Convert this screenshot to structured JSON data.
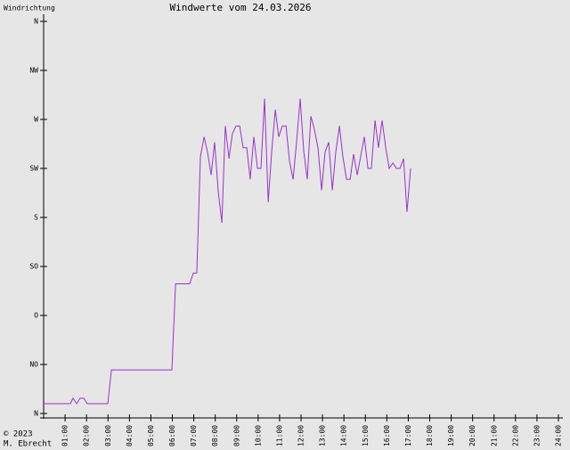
{
  "chart_data": {
    "type": "line",
    "y_label": "Windrichtung",
    "title": "Windwerte vom 24.03.2026",
    "footer": [
      "© 2023",
      "M. Ebrecht"
    ],
    "xlim": [
      0,
      24
    ],
    "xticks": [
      {
        "value": 1,
        "label": "01:00"
      },
      {
        "value": 2,
        "label": "02:00"
      },
      {
        "value": 3,
        "label": "03:00"
      },
      {
        "value": 4,
        "label": "04:00"
      },
      {
        "value": 5,
        "label": "05:00"
      },
      {
        "value": 6,
        "label": "06:00"
      },
      {
        "value": 7,
        "label": "07:00"
      },
      {
        "value": 8,
        "label": "08:00"
      },
      {
        "value": 9,
        "label": "09:00"
      },
      {
        "value": 10,
        "label": "10:00"
      },
      {
        "value": 11,
        "label": "11:00"
      },
      {
        "value": 12,
        "label": "12:00"
      },
      {
        "value": 13,
        "label": "13:00"
      },
      {
        "value": 14,
        "label": "14:00"
      },
      {
        "value": 15,
        "label": "15:00"
      },
      {
        "value": 16,
        "label": "16:00"
      },
      {
        "value": 17,
        "label": "17:00"
      },
      {
        "value": 18,
        "label": "18:00"
      },
      {
        "value": 19,
        "label": "19:00"
      },
      {
        "value": 20,
        "label": "20:00"
      },
      {
        "value": 21,
        "label": "21:00"
      },
      {
        "value": 22,
        "label": "22:00"
      },
      {
        "value": 23,
        "label": "23:00"
      },
      {
        "value": 24,
        "label": "24:00"
      }
    ],
    "ylim": [
      0,
      360
    ],
    "yticks": [
      {
        "value": 0,
        "label": "N"
      },
      {
        "value": 45,
        "label": "NO"
      },
      {
        "value": 90,
        "label": "O"
      },
      {
        "value": 135,
        "label": "SO"
      },
      {
        "value": 180,
        "label": "S"
      },
      {
        "value": 225,
        "label": "SW"
      },
      {
        "value": 270,
        "label": "W"
      },
      {
        "value": 315,
        "label": "NW"
      },
      {
        "value": 360,
        "label": "N"
      }
    ],
    "color": "#9933cc",
    "x": [
      0,
      1.25,
      1.37,
      1.54,
      1.7,
      1.87,
      2.03,
      2.99,
      3.16,
      5.98,
      6.15,
      6.81,
      6.98,
      7.14,
      7.31,
      7.48,
      7.64,
      7.81,
      7.97,
      8.14,
      8.31,
      8.47,
      8.64,
      8.8,
      8.97,
      9.14,
      9.3,
      9.47,
      9.63,
      9.8,
      9.97,
      10.13,
      10.3,
      10.47,
      10.63,
      10.8,
      10.96,
      11.13,
      11.3,
      11.46,
      11.63,
      11.79,
      11.96,
      12.13,
      12.29,
      12.46,
      12.62,
      12.79,
      12.96,
      13.12,
      13.29,
      13.46,
      13.62,
      13.79,
      13.95,
      14.12,
      14.29,
      14.45,
      14.62,
      14.78,
      14.95,
      15.12,
      15.28,
      15.45,
      15.61,
      15.78,
      15.95,
      16.11,
      16.28,
      16.45,
      16.61,
      16.78,
      16.94,
      17.11
    ],
    "values": [
      9,
      9,
      14,
      9,
      14,
      14,
      9,
      9,
      40,
      40,
      119,
      119,
      129,
      129,
      236,
      254,
      240,
      219,
      249,
      204,
      175,
      264,
      234,
      257,
      264,
      264,
      244,
      244,
      215,
      254,
      225,
      225,
      289,
      194,
      240,
      279,
      254,
      264,
      264,
      232,
      215,
      249,
      289,
      240,
      215,
      273,
      261,
      244,
      205,
      240,
      249,
      205,
      240,
      264,
      236,
      215,
      215,
      238,
      219,
      236,
      254,
      225,
      225,
      269,
      244,
      269,
      244,
      225,
      230,
      225,
      225,
      234,
      185,
      225
    ]
  }
}
